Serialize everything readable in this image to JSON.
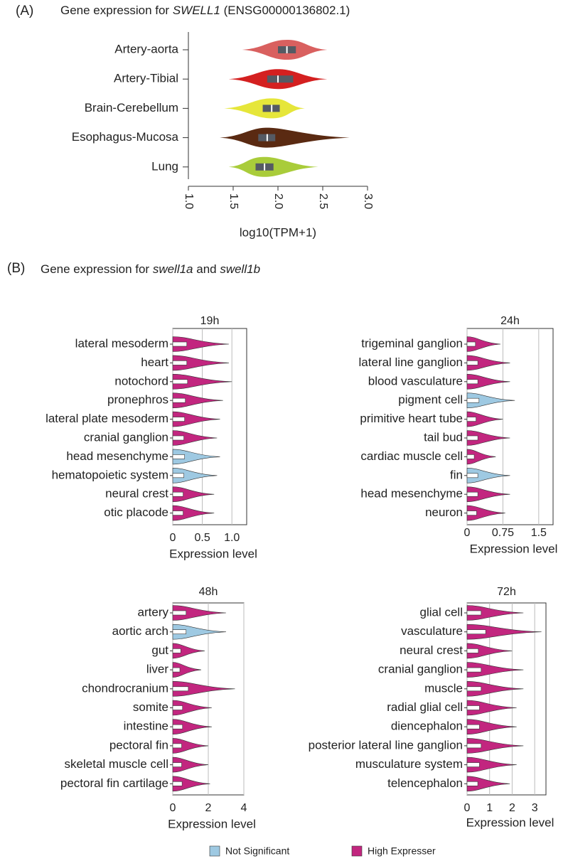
{
  "panel_labels": [
    "(A)",
    "(B)"
  ],
  "section_b_title": [
    "Gene expression for ",
    "swell1a",
    " and ",
    "swell1b"
  ],
  "legend": [
    {
      "name": "Not Significant",
      "color": "#9ec9e2"
    },
    {
      "name": "High Expresser",
      "color": "#c2267f"
    }
  ],
  "chart_data": [
    {
      "type": "violin-box",
      "title": [
        "Gene expression for ",
        "SWELL1",
        " (ENSG00000136802.1)"
      ],
      "x_label": "log10(TPM+1)",
      "categories": [
        "Artery-aorta",
        "Artery-Tibial",
        "Brain-Cerebellum",
        "Esophagus-Mucosa",
        "Lung"
      ],
      "colors": [
        "#d9605f",
        "#d42020",
        "#e6e63a",
        "#5a2a12",
        "#a9cc3a"
      ],
      "mins": [
        1.6,
        1.45,
        1.4,
        1.35,
        1.45
      ],
      "q1": [
        2.0,
        1.88,
        1.83,
        1.78,
        1.75
      ],
      "medians": [
        2.1,
        2.0,
        1.93,
        1.88,
        1.85
      ],
      "q3": [
        2.2,
        2.17,
        2.02,
        1.97,
        1.95
      ],
      "maxs": [
        2.55,
        2.55,
        2.3,
        2.8,
        2.45
      ],
      "xlim": [
        1,
        3
      ],
      "xticks": [
        {
          "value": 1,
          "label": "1.0"
        },
        {
          "value": 1.5,
          "label": "1.5"
        },
        {
          "value": 2,
          "label": "2.0"
        },
        {
          "value": 2.5,
          "label": "2.5"
        },
        {
          "value": 3,
          "label": "3.0"
        }
      ]
    },
    {
      "type": "violin",
      "title": "19h",
      "x_label": "Expression level",
      "grid": true,
      "categories": [
        "lateral mesoderm",
        "heart",
        "notochord",
        "pronephros",
        "lateral plate mesoderm",
        "cranial ganglion",
        "head mesenchyme",
        "hematopoietic system",
        "neural crest",
        "otic placode"
      ],
      "status": [
        "High Expresser",
        "High Expresser",
        "High Expresser",
        "High Expresser",
        "High Expresser",
        "High Expresser",
        "Not Significant",
        "Not Significant",
        "High Expresser",
        "High Expresser"
      ],
      "values": [
        0.95,
        0.95,
        1.0,
        0.85,
        0.8,
        0.75,
        0.8,
        0.75,
        0.7,
        0.7
      ],
      "xlim": [
        0,
        1.25
      ],
      "xticks": [
        0,
        0.5,
        {
          "value": 1,
          "label": "1.0"
        }
      ]
    },
    {
      "type": "violin",
      "title": "24h",
      "x_label": "Expression level",
      "grid": true,
      "categories": [
        "trigeminal ganglion",
        "lateral line ganglion",
        "blood vasculature",
        "pigment cell",
        "primitive heart tube",
        "tail bud",
        "cardiac muscle cell",
        "fin",
        "head mesenchyme",
        "neuron"
      ],
      "status": [
        "High Expresser",
        "High Expresser",
        "High Expresser",
        "Not Significant",
        "High Expresser",
        "High Expresser",
        "High Expresser",
        "Not Significant",
        "High Expresser",
        "High Expresser"
      ],
      "values": [
        0.7,
        0.9,
        0.9,
        1.0,
        0.75,
        0.9,
        0.6,
        0.9,
        0.9,
        0.8
      ],
      "xlim": [
        0,
        1.8
      ],
      "xticks": [
        0,
        0.75,
        1.5
      ]
    },
    {
      "type": "violin",
      "title": "48h",
      "x_label": "Expression level",
      "grid": true,
      "categories": [
        "artery",
        "aortic arch",
        "gut",
        "liver",
        "chondrocranium",
        "somite",
        "intestine",
        "pectoral fin",
        "skeletal muscle cell",
        "pectoral fin cartilage"
      ],
      "status": [
        "High Expresser",
        "Not Significant",
        "High Expresser",
        "High Expresser",
        "High Expresser",
        "High Expresser",
        "High Expresser",
        "High Expresser",
        "High Expresser",
        "High Expresser"
      ],
      "values": [
        3.0,
        3.0,
        1.8,
        1.6,
        3.5,
        2.2,
        2.2,
        2.0,
        2.0,
        2.1
      ],
      "xlim": [
        0,
        4
      ],
      "xticks": [
        0,
        2,
        4
      ]
    },
    {
      "type": "violin",
      "title": "72h",
      "x_label": "Expression level",
      "grid": true,
      "categories": [
        "glial cell",
        "vasculature",
        "neural crest",
        "cranial ganglion",
        "muscle",
        "radial glial cell",
        "diencephalon",
        "posterior lateral line ganglion",
        "musculature system",
        "telencephalon"
      ],
      "status": [
        "High Expresser",
        "High Expresser",
        "High Expresser",
        "High Expresser",
        "High Expresser",
        "High Expresser",
        "High Expresser",
        "High Expresser",
        "High Expresser",
        "High Expresser"
      ],
      "values": [
        2.5,
        3.3,
        2.0,
        2.5,
        2.5,
        2.2,
        2.2,
        2.5,
        2.2,
        1.9
      ],
      "xlim": [
        0,
        3.5
      ],
      "xticks": [
        0,
        1,
        2,
        3
      ]
    }
  ]
}
